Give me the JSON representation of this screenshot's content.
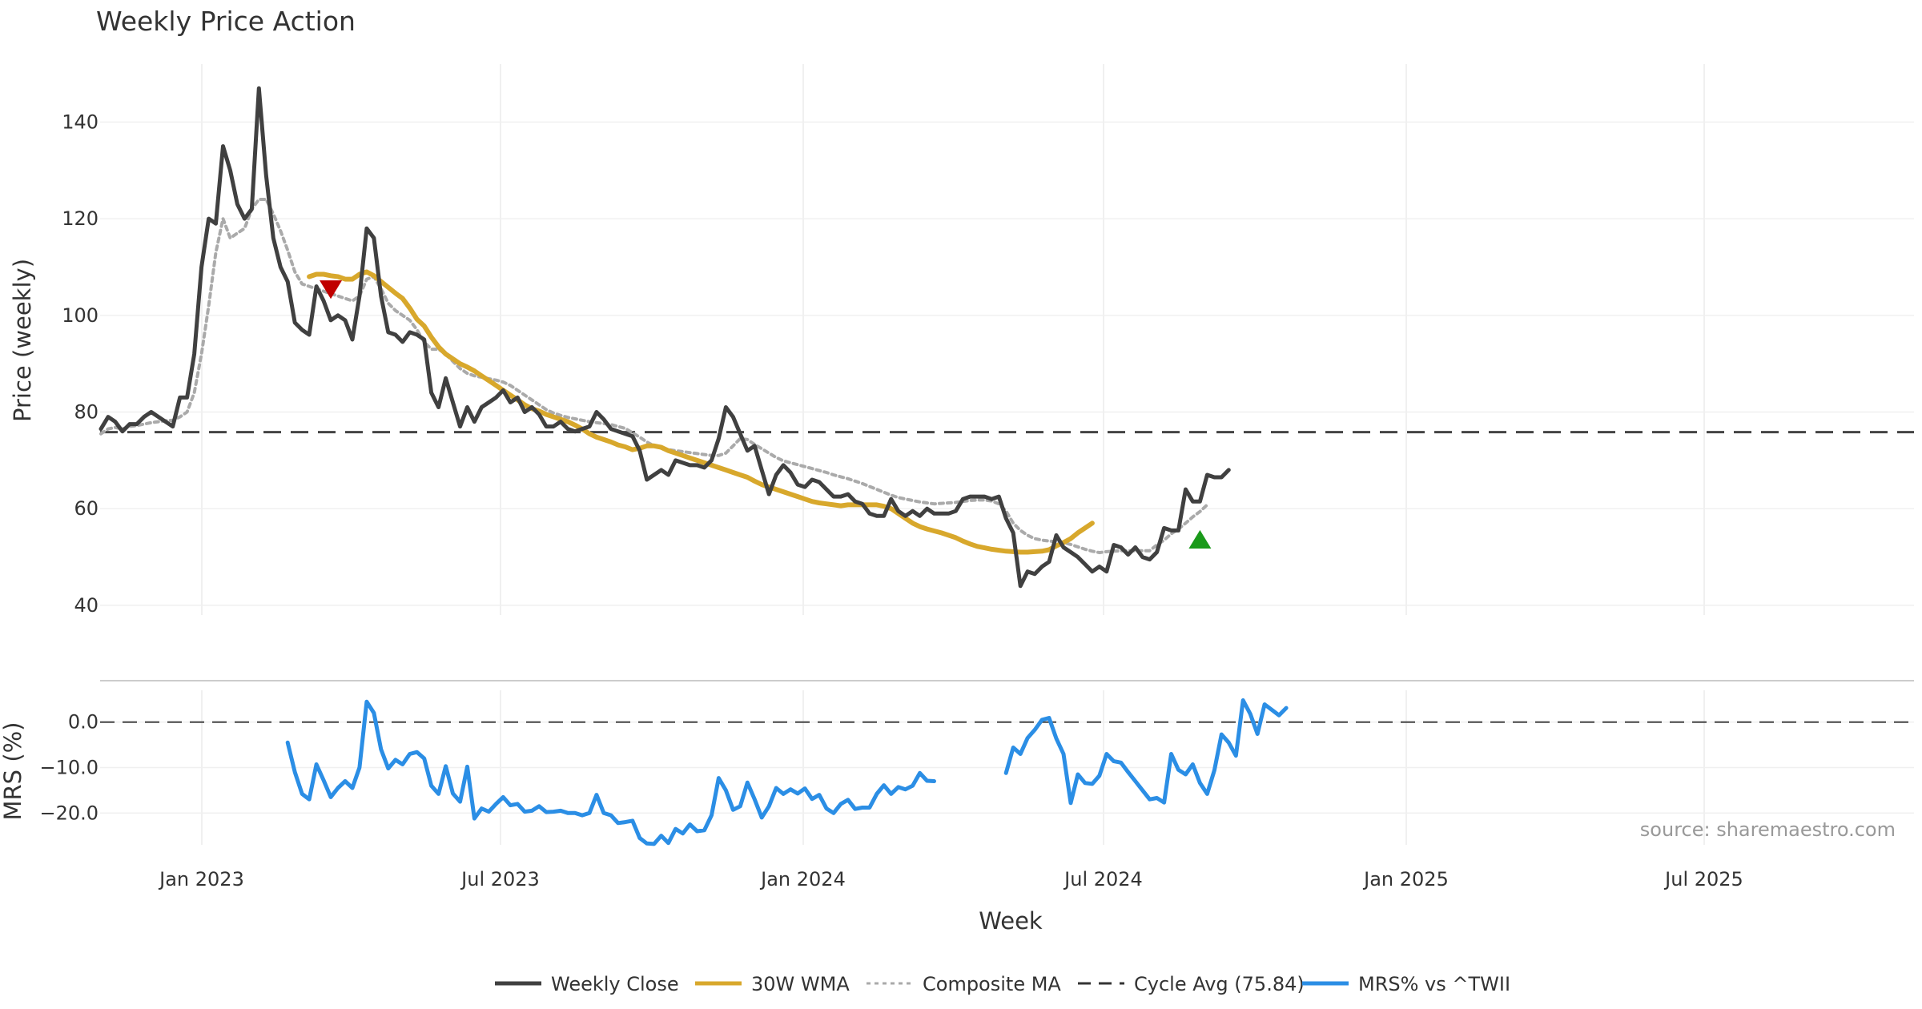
{
  "chart_data": {
    "type": "line",
    "title": "Weekly Price Action",
    "xlabel": "Week",
    "x_ticks": [
      "Jan 2023",
      "Jul 2023",
      "Jan 2024",
      "Jul 2024",
      "Jan 2025",
      "Jul 2025"
    ],
    "start_week": "2022-11-14",
    "source_note": "source: sharemaestro.com",
    "price_panel": {
      "ylabel": "Price (weekly)",
      "ylim": [
        38,
        152
      ],
      "yticks": [
        40,
        60,
        80,
        100,
        120,
        140
      ],
      "grid": true,
      "cycle_avg": 75.84,
      "series": [
        {
          "name": "Weekly Close",
          "color": "#404040",
          "style": "solid",
          "start_index": 0,
          "values": [
            76.5,
            79,
            78,
            76,
            77.5,
            77.5,
            79,
            80,
            79,
            78,
            77,
            83,
            83,
            92,
            110,
            120,
            119,
            135,
            130,
            123,
            120,
            122,
            147,
            129,
            116,
            110,
            107,
            98.5,
            97,
            96,
            106,
            103,
            99,
            100,
            99,
            95,
            104,
            118,
            116,
            104,
            96.5,
            96,
            94.5,
            96.5,
            96,
            95,
            84,
            81,
            87,
            82,
            77,
            81,
            78,
            81,
            82,
            83,
            84.5,
            82,
            83,
            80,
            81,
            79.5,
            77,
            77,
            78,
            76.5,
            76,
            76.5,
            77,
            80,
            78.5,
            76.5,
            76,
            75.5,
            75,
            72,
            66,
            67,
            68,
            67,
            70,
            69.5,
            69,
            69,
            68.5,
            70,
            74.5,
            81,
            79,
            75.5,
            72,
            73,
            68,
            63,
            67,
            69,
            67.5,
            65,
            64.5,
            66,
            65.5,
            64,
            62.5,
            62.5,
            63,
            61.5,
            61,
            59,
            58.5,
            58.5,
            62,
            59.5,
            58.5,
            59.5,
            58.5,
            60,
            59,
            59,
            59,
            59.5,
            62,
            62.5,
            62.5,
            62.5,
            62,
            62.5,
            58,
            55,
            44,
            47,
            46.5,
            48,
            49,
            54.5,
            52,
            51,
            50,
            48.5,
            47,
            48,
            47,
            52.5,
            52,
            50.5,
            52,
            50,
            49.5,
            51,
            56,
            55.5,
            55.5,
            64,
            61.5,
            61.5,
            67,
            66.5,
            66.5,
            68
          ]
        },
        {
          "name": "30W WMA",
          "color": "#d8a82c",
          "style": "solid",
          "start_index": 29,
          "values": [
            108,
            108.5,
            108.5,
            108.2,
            108,
            107.5,
            107.5,
            108.5,
            109,
            108.2,
            107,
            105.8,
            104.6,
            103.5,
            101.5,
            99.2,
            97.8,
            95.5,
            93.5,
            92,
            91,
            90,
            89.3,
            88.5,
            87.5,
            86.5,
            85.5,
            84.5,
            83.5,
            82.5,
            81.5,
            80.7,
            80.2,
            79.5,
            79,
            78.5,
            78,
            77.3,
            76.5,
            75.5,
            74.8,
            74.3,
            73.8,
            73.2,
            72.8,
            72.2,
            72.5,
            73,
            73,
            72.7,
            72,
            71.5,
            71,
            70.5,
            70,
            69.5,
            69,
            68.5,
            68,
            67.5,
            67,
            66.5,
            65.7,
            65,
            64.5,
            64,
            63.5,
            63,
            62.5,
            62,
            61.5,
            61.2,
            61,
            60.8,
            60.6,
            60.8,
            60.8,
            60.8,
            60.8,
            60.8,
            60.5,
            60,
            59,
            58,
            57,
            56.3,
            55.8,
            55.4,
            55,
            54.5,
            54,
            53.3,
            52.7,
            52.2,
            51.9,
            51.6,
            51.4,
            51.2,
            51.1,
            51,
            51,
            51.1,
            51.2,
            51.5,
            52.3,
            53,
            53.8,
            55,
            56,
            57
          ]
        },
        {
          "name": "Composite MA",
          "color": "#aaaaaa",
          "style": "dotted",
          "start_index": 0,
          "values": [
            75.5,
            76.5,
            76.8,
            76.5,
            77,
            77.2,
            77.5,
            77.8,
            78,
            78.2,
            78.3,
            79,
            80,
            84,
            92,
            102,
            113,
            120,
            116,
            117,
            118,
            122,
            124,
            124,
            121,
            117.5,
            113.5,
            109,
            106.5,
            106,
            105.5,
            105,
            104.5,
            104,
            103.5,
            103,
            104,
            107.5,
            108,
            105.5,
            102.5,
            101,
            100,
            99,
            97,
            94.5,
            93,
            93,
            92,
            90.5,
            89,
            88,
            87.5,
            87.2,
            86.9,
            86.6,
            86.2,
            85.5,
            84.5,
            83.5,
            82.5,
            81.5,
            80.5,
            79.8,
            79.3,
            78.9,
            78.6,
            78.3,
            78,
            77.8,
            77.6,
            77.4,
            77,
            76.6,
            75.7,
            74.8,
            73.8,
            73,
            72.5,
            72.2,
            72,
            71.8,
            71.6,
            71.4,
            71.2,
            71,
            71,
            71.5,
            73,
            74.5,
            74.3,
            73.3,
            72.4,
            71.5,
            70.6,
            69.9,
            69.5,
            69.1,
            68.7,
            68.3,
            67.9,
            67.5,
            67,
            66.6,
            66.2,
            65.7,
            65.2,
            64.6,
            64,
            63.4,
            62.8,
            62.3,
            62,
            61.7,
            61.4,
            61.2,
            61,
            61.1,
            61.2,
            61.3,
            61.5,
            61.7,
            61.8,
            61.8,
            61.6,
            61,
            59.5,
            57,
            55.5,
            54.5,
            53.8,
            53.5,
            53.3,
            53.2,
            53,
            52.6,
            52.1,
            51.6,
            51.2,
            50.9,
            51.1,
            51.2,
            51.3,
            51.3,
            51.3,
            51.3,
            51.3,
            52.5,
            53.5,
            54.8,
            55.8,
            57,
            58.3,
            59.4,
            60.8
          ]
        }
      ],
      "markers": [
        {
          "type": "sell",
          "color": "#c00000",
          "x_index": 32,
          "y": 105.5
        },
        {
          "type": "buy",
          "color": "#1a9a1a",
          "x_index": 153,
          "y": 53.5
        }
      ]
    },
    "mrs_panel": {
      "ylabel": "MRS (%)",
      "ylim": [
        -27,
        7
      ],
      "yticks": [
        0.0,
        -10.0,
        -20.0
      ],
      "ytick_labels": [
        "0.0",
        "−10.0",
        "−20.0"
      ],
      "series": [
        {
          "name": "MRS% vs ^TWII",
          "color": "#2b8ee5",
          "segments": [
            {
              "start_index": 26,
              "values": [
                -4.5,
                -11,
                -15.8,
                -17,
                -9.3,
                -12.8,
                -16.5,
                -14.5,
                -13,
                -14.5,
                -10,
                4.5,
                2,
                -6,
                -10.2,
                -8.3,
                -9.3,
                -7,
                -6.6,
                -8,
                -14,
                -15.8,
                -9.7,
                -15.7,
                -17.5,
                -9.8,
                -21.2,
                -19,
                -19.7,
                -18,
                -16.5,
                -18.3,
                -18,
                -19.7,
                -19.5,
                -18.5,
                -19.8,
                -19.7,
                -19.5,
                -20,
                -20,
                -20.5,
                -20,
                -16,
                -20,
                -20.5,
                -22.2,
                -22,
                -21.7,
                -25.5,
                -26.7,
                -26.8,
                -25,
                -26.6,
                -23.5,
                -24.5,
                -22.5,
                -24,
                -23.8,
                -20.5,
                -12.3,
                -15,
                -19.3,
                -18.5,
                -13.3,
                -17,
                -21,
                -18.5,
                -14.5,
                -15.8,
                -14.8,
                -15.7,
                -14.6,
                -16.9,
                -16,
                -19,
                -20,
                -18,
                -17.1,
                -19.1,
                -18.8,
                -18.8,
                -15.8,
                -13.9,
                -15.8,
                -14.3,
                -14.8,
                -14,
                -11.2,
                -12.9,
                -13
              ]
            },
            {
              "start_index": 126,
              "values": [
                -11.2,
                -5.6,
                -7,
                -3.5,
                -1.7,
                0.5,
                0.9,
                -3.6,
                -7,
                -17.8,
                -11.5,
                -13.4,
                -13.6,
                -11.8,
                -7,
                -8.6,
                -8.9,
                -11,
                -13,
                -15,
                -17,
                -16.7,
                -17.7,
                -7,
                -10.5,
                -11.5,
                -9.3,
                -13.4,
                -15.8,
                -10.6,
                -2.7,
                -4.5,
                -7.4,
                4.8,
                1.8,
                -2.6,
                3.9,
                2.7,
                1.5,
                3.1
              ]
            }
          ]
        }
      ]
    },
    "legend": [
      {
        "label": "Weekly Close",
        "color": "#404040",
        "style": "solid"
      },
      {
        "label": "30W WMA",
        "color": "#d8a82c",
        "style": "solid"
      },
      {
        "label": "Composite MA",
        "color": "#aaaaaa",
        "style": "dotted"
      },
      {
        "label": "Cycle Avg (75.84)",
        "color": "#333333",
        "style": "dashed"
      },
      {
        "label": "MRS% vs ^TWII",
        "color": "#2b8ee5",
        "style": "solid"
      }
    ]
  }
}
